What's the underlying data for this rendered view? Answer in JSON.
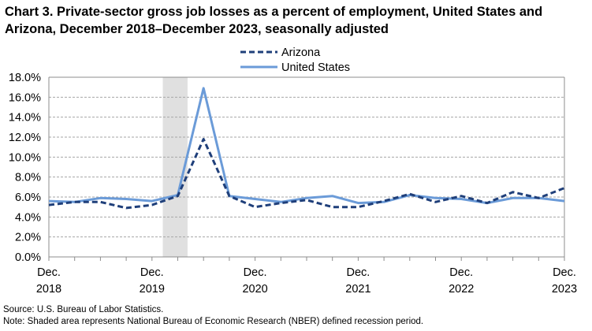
{
  "title": "Chart 3. Private-sector gross job losses as a percent of employment, United States and Arizona, December 2018–December 2023, seasonally adjusted",
  "source": "Source: U.S. Bureau of Labor Statistics.",
  "note": "Note: Shaded area represents National Bureau of Economic Research (NBER) defined  recession period.",
  "chart_data": {
    "type": "line",
    "x": [
      "Dec. 2018",
      "Mar. 2019",
      "Jun. 2019",
      "Sep. 2019",
      "Dec. 2019",
      "Mar. 2020",
      "Jun. 2020",
      "Sep. 2020",
      "Dec. 2020",
      "Mar. 2021",
      "Jun. 2021",
      "Sep. 2021",
      "Dec. 2021",
      "Mar. 2022",
      "Jun. 2022",
      "Sep. 2022",
      "Dec. 2022",
      "Mar. 2023",
      "Jun. 2023",
      "Sep. 2023",
      "Dec. 2023"
    ],
    "x_tick_labels": [
      {
        "index": 0,
        "line1": "Dec.",
        "line2": "2018"
      },
      {
        "index": 4,
        "line1": "Dec.",
        "line2": "2019"
      },
      {
        "index": 8,
        "line1": "Dec.",
        "line2": "2020"
      },
      {
        "index": 12,
        "line1": "Dec.",
        "line2": "2021"
      },
      {
        "index": 16,
        "line1": "Dec.",
        "line2": "2022"
      },
      {
        "index": 20,
        "line1": "Dec.",
        "line2": "2023"
      }
    ],
    "series": [
      {
        "name": "Arizona",
        "style": "dashed",
        "color": "#1f3f7a",
        "values": [
          5.2,
          5.5,
          5.5,
          4.9,
          5.2,
          6.1,
          11.8,
          6.1,
          5.0,
          5.4,
          5.7,
          5.0,
          5.0,
          5.6,
          6.3,
          5.5,
          6.1,
          5.4,
          6.5,
          5.9,
          6.9
        ]
      },
      {
        "name": "United States",
        "style": "solid",
        "color": "#6b9bd8",
        "values": [
          5.6,
          5.5,
          5.9,
          5.8,
          5.6,
          6.2,
          16.9,
          6.1,
          5.8,
          5.5,
          5.9,
          6.1,
          5.4,
          5.5,
          6.2,
          5.9,
          5.8,
          5.4,
          5.9,
          5.9,
          5.6
        ]
      }
    ],
    "ylim": [
      0,
      18
    ],
    "y_ticks": [
      "0.0%",
      "2.0%",
      "4.0%",
      "6.0%",
      "8.0%",
      "10.0%",
      "12.0%",
      "14.0%",
      "16.0%",
      "18.0%"
    ],
    "recession_shading": {
      "from": "Mar. 2020",
      "to": "Apr. 2020",
      "color": "#e0e0e0"
    },
    "grid": "horizontal dashed",
    "legend_position": "top-center"
  }
}
